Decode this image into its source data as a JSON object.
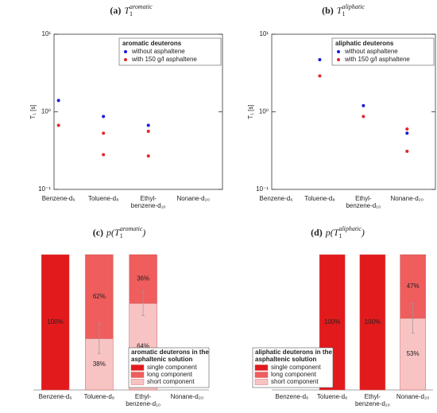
{
  "chart_data": [
    {
      "type": "scatter",
      "title": {
        "label": "(a)",
        "math": "T",
        "sub": "1",
        "sup": "aromatic"
      },
      "ylabel": "T₁ [s]",
      "log_y": true,
      "categories": [
        "Benzene-d₆",
        "Toluene-d₈",
        "Ethyl-\nbenzene-d₁₀",
        "Nonane-d₂₀"
      ],
      "ylim": [
        0.1,
        10
      ],
      "yticks": [
        {
          "value": 0.1,
          "label": "10⁻¹"
        },
        {
          "value": 1,
          "label": "10⁰"
        },
        {
          "value": 10,
          "label": "10¹"
        }
      ],
      "legend_title": "aromatic deuterons",
      "legend": "upper right",
      "series": [
        {
          "name": "without asphaltene",
          "color": "#1a1adf",
          "values": [
            1.4,
            0.87,
            0.67,
            null
          ]
        },
        {
          "name": "with 150 g/l asphaltene",
          "color": "#e5262b",
          "values": [
            [
              0.67
            ],
            [
              0.53,
              0.28
            ],
            [
              0.56,
              0.27
            ],
            null
          ]
        }
      ]
    },
    {
      "type": "scatter",
      "title": {
        "label": "(b)",
        "math": "T",
        "sub": "1",
        "sup": "aliphatic"
      },
      "ylabel": "T₁ [s]",
      "log_y": true,
      "categories": [
        "Benzene-d₆",
        "Toluene-d₈",
        "Ethyl-\nbenzene-d₁₀",
        "Nonane-d₂₀"
      ],
      "ylim": [
        0.1,
        10
      ],
      "yticks": [
        {
          "value": 0.1,
          "label": "10⁻¹"
        },
        {
          "value": 1,
          "label": "10⁰"
        },
        {
          "value": 10,
          "label": "10¹"
        }
      ],
      "legend_title": "aliphatic deuterons",
      "legend": "upper right",
      "series": [
        {
          "name": "without asphaltene",
          "color": "#1a1adf",
          "values": [
            null,
            4.7,
            1.2,
            0.53
          ]
        },
        {
          "name": "with 150 g/l asphaltene",
          "color": "#e5262b",
          "values": [
            null,
            [
              2.9
            ],
            [
              0.87
            ],
            [
              0.6,
              0.31
            ]
          ]
        }
      ]
    },
    {
      "type": "stacked_bar",
      "title": {
        "label": "(c)",
        "math": "p(T",
        "sub": "1",
        "sup": "aromatic",
        "close": ")"
      },
      "categories": [
        "Benzene-d₆",
        "Toluene-d₈",
        "Ethyl-\nbenzene-d₁₀",
        "Nonane-d₂₀"
      ],
      "ylim": [
        0,
        100
      ],
      "legend_title": "aromatic deuterons in the\nasphaltenic solution",
      "legend": "lower right",
      "series": [
        {
          "name": "single component",
          "color": "#e31a1c",
          "values": [
            100,
            null,
            null,
            null
          ],
          "value_labels": [
            "100%",
            null,
            null,
            null
          ]
        },
        {
          "name": "long component",
          "color": "#ef5d5d",
          "values": [
            null,
            62,
            36,
            null
          ],
          "value_labels": [
            null,
            "62%",
            "36%",
            null
          ]
        },
        {
          "name": "short component",
          "color": "#f8c3c3",
          "values": [
            null,
            38,
            64,
            null
          ],
          "value_labels": [
            null,
            "38%",
            "64%",
            null
          ],
          "errors": [
            null,
            11,
            9,
            null
          ]
        }
      ]
    },
    {
      "type": "stacked_bar",
      "title": {
        "label": "(d)",
        "math": "p(T",
        "sub": "1",
        "sup": "aliphatic",
        "close": ")"
      },
      "categories": [
        "Benzene-d₆",
        "Toluene-d₈",
        "Ethyl-\nbenzene-d₁₀",
        "Nonane-d₂₀"
      ],
      "ylim": [
        0,
        100
      ],
      "legend_title": "aliphatic deuterons in the\nasphaltenic solution",
      "legend": "lower left",
      "series": [
        {
          "name": "single component",
          "color": "#e31a1c",
          "values": [
            null,
            100,
            100,
            null
          ],
          "value_labels": [
            null,
            "100%",
            "100%",
            null
          ]
        },
        {
          "name": "long component",
          "color": "#ef5d5d",
          "values": [
            null,
            null,
            null,
            47
          ],
          "value_labels": [
            null,
            null,
            null,
            "47%"
          ]
        },
        {
          "name": "short component",
          "color": "#f8c3c3",
          "values": [
            null,
            null,
            null,
            53
          ],
          "value_labels": [
            null,
            null,
            null,
            "53%"
          ],
          "errors": [
            null,
            null,
            null,
            11
          ]
        }
      ]
    }
  ]
}
